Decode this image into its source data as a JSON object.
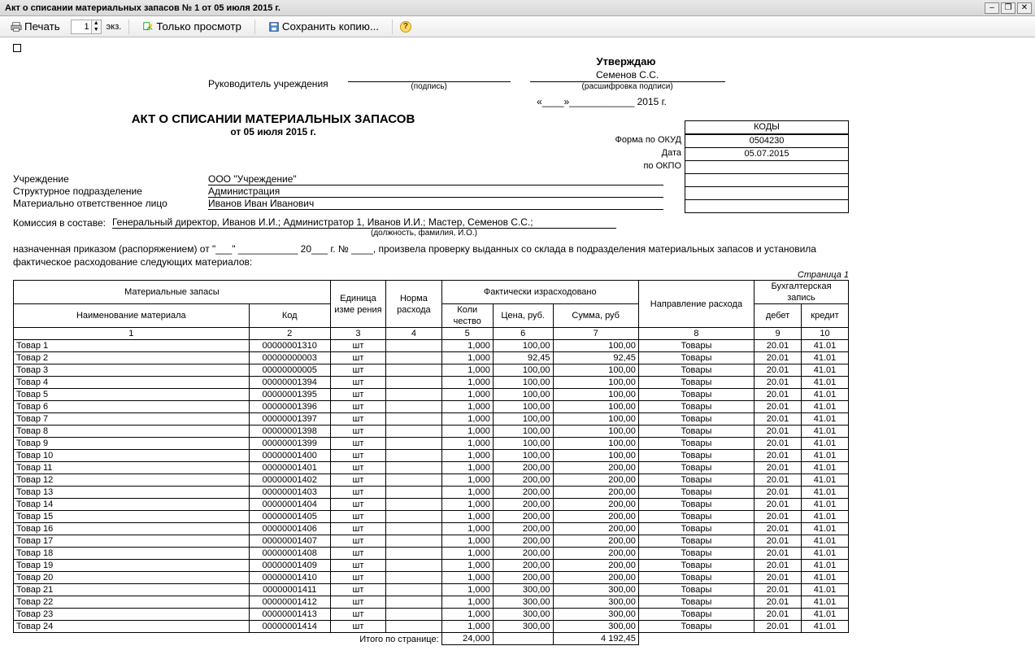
{
  "window": {
    "title": "Акт о списании материальных запасов № 1 от 05 июля 2015 г."
  },
  "toolbar": {
    "print": "Печать",
    "copies": "1",
    "copies_suffix": "экз.",
    "preview_only": "Только просмотр",
    "save_copy": "Сохранить копию..."
  },
  "approval": {
    "title": "Утверждаю",
    "head_label": "Руководитель учреждения",
    "signature_sub": "(подпись)",
    "name": "Семенов С.С.",
    "name_sub": "(расшифровка подписи)",
    "date_template": "«____»____________ 2015 г."
  },
  "document": {
    "title": "АКТ О СПИСАНИИ МАТЕРИАЛЬНЫХ ЗАПАСОВ",
    "date": "от 05 июля 2015  г."
  },
  "codes": {
    "header": "КОДЫ",
    "form_label": "Форма по ОКУД",
    "form_value": "0504230",
    "date_label": "Дата",
    "date_value": "05.07.2015",
    "okpo_label": "по ОКПО",
    "okpo_value": ""
  },
  "fields": {
    "institution_label": "Учреждение",
    "institution_value": "ООО \"Учреждение\"",
    "division_label": "Структурное подразделение",
    "division_value": "Администрация",
    "responsible_label": "Материально ответственное лицо",
    "responsible_value": "Иванов Иван Иванович"
  },
  "commission": {
    "label": "Комиссия в составе:",
    "value": "Генеральный директор, Иванов И.И.; Администратор 1, Иванов И.И.; Мастер, Семенов С.С.;",
    "sub": "(должность, фамилия, И.О.)",
    "order_text": "назначенная приказом (распоряжением) от \"___\" ___________ 20___ г. № ____, произвела проверку выданных со склада в подразделения материальных запасов и установила фактическое расходование следующих материалов:"
  },
  "page_label": "Страница 1",
  "headers": {
    "materials": "Материальные запасы",
    "name": "Наименование материала",
    "code": "Код",
    "unit": "Единица изме рения",
    "norm": "Норма расхода",
    "actual": "Фактически израсходовано",
    "qty": "Коли чество",
    "price": "Цена, руб.",
    "sum": "Сумма, руб",
    "direction": "Направление расхода",
    "accounting": "Бухгалтерская запись",
    "debit": "дебет",
    "credit": "кредит"
  },
  "col_nums": [
    "1",
    "2",
    "3",
    "4",
    "5",
    "6",
    "7",
    "8",
    "9",
    "10"
  ],
  "rows": [
    {
      "name": "Товар 1",
      "code": "00000001310",
      "unit": "шт",
      "qty": "1,000",
      "price": "100,00",
      "sum": "100,00",
      "dir": "Товары",
      "debit": "20.01",
      "credit": "41.01"
    },
    {
      "name": "Товар 2",
      "code": "00000000003",
      "unit": "шт",
      "qty": "1,000",
      "price": "92,45",
      "sum": "92,45",
      "dir": "Товары",
      "debit": "20.01",
      "credit": "41.01"
    },
    {
      "name": "Товар 3",
      "code": "00000000005",
      "unit": "шт",
      "qty": "1,000",
      "price": "100,00",
      "sum": "100,00",
      "dir": "Товары",
      "debit": "20.01",
      "credit": "41.01"
    },
    {
      "name": "Товар 4",
      "code": "00000001394",
      "unit": "шт",
      "qty": "1,000",
      "price": "100,00",
      "sum": "100,00",
      "dir": "Товары",
      "debit": "20.01",
      "credit": "41.01"
    },
    {
      "name": "Товар 5",
      "code": "00000001395",
      "unit": "шт",
      "qty": "1,000",
      "price": "100,00",
      "sum": "100,00",
      "dir": "Товары",
      "debit": "20.01",
      "credit": "41.01"
    },
    {
      "name": "Товар 6",
      "code": "00000001396",
      "unit": "шт",
      "qty": "1,000",
      "price": "100,00",
      "sum": "100,00",
      "dir": "Товары",
      "debit": "20.01",
      "credit": "41.01"
    },
    {
      "name": "Товар 7",
      "code": "00000001397",
      "unit": "шт",
      "qty": "1,000",
      "price": "100,00",
      "sum": "100,00",
      "dir": "Товары",
      "debit": "20.01",
      "credit": "41.01"
    },
    {
      "name": "Товар 8",
      "code": "00000001398",
      "unit": "шт",
      "qty": "1,000",
      "price": "100,00",
      "sum": "100,00",
      "dir": "Товары",
      "debit": "20.01",
      "credit": "41.01"
    },
    {
      "name": "Товар 9",
      "code": "00000001399",
      "unit": "шт",
      "qty": "1,000",
      "price": "100,00",
      "sum": "100,00",
      "dir": "Товары",
      "debit": "20.01",
      "credit": "41.01"
    },
    {
      "name": "Товар 10",
      "code": "00000001400",
      "unit": "шт",
      "qty": "1,000",
      "price": "100,00",
      "sum": "100,00",
      "dir": "Товары",
      "debit": "20.01",
      "credit": "41.01"
    },
    {
      "name": "Товар 11",
      "code": "00000001401",
      "unit": "шт",
      "qty": "1,000",
      "price": "200,00",
      "sum": "200,00",
      "dir": "Товары",
      "debit": "20.01",
      "credit": "41.01"
    },
    {
      "name": "Товар 12",
      "code": "00000001402",
      "unit": "шт",
      "qty": "1,000",
      "price": "200,00",
      "sum": "200,00",
      "dir": "Товары",
      "debit": "20.01",
      "credit": "41.01"
    },
    {
      "name": "Товар 13",
      "code": "00000001403",
      "unit": "шт",
      "qty": "1,000",
      "price": "200,00",
      "sum": "200,00",
      "dir": "Товары",
      "debit": "20.01",
      "credit": "41.01"
    },
    {
      "name": "Товар 14",
      "code": "00000001404",
      "unit": "шт",
      "qty": "1,000",
      "price": "200,00",
      "sum": "200,00",
      "dir": "Товары",
      "debit": "20.01",
      "credit": "41.01"
    },
    {
      "name": "Товар 15",
      "code": "00000001405",
      "unit": "шт",
      "qty": "1,000",
      "price": "200,00",
      "sum": "200,00",
      "dir": "Товары",
      "debit": "20.01",
      "credit": "41.01"
    },
    {
      "name": "Товар 16",
      "code": "00000001406",
      "unit": "шт",
      "qty": "1,000",
      "price": "200,00",
      "sum": "200,00",
      "dir": "Товары",
      "debit": "20.01",
      "credit": "41.01"
    },
    {
      "name": "Товар 17",
      "code": "00000001407",
      "unit": "шт",
      "qty": "1,000",
      "price": "200,00",
      "sum": "200,00",
      "dir": "Товары",
      "debit": "20.01",
      "credit": "41.01"
    },
    {
      "name": "Товар 18",
      "code": "00000001408",
      "unit": "шт",
      "qty": "1,000",
      "price": "200,00",
      "sum": "200,00",
      "dir": "Товары",
      "debit": "20.01",
      "credit": "41.01"
    },
    {
      "name": "Товар 19",
      "code": "00000001409",
      "unit": "шт",
      "qty": "1,000",
      "price": "200,00",
      "sum": "200,00",
      "dir": "Товары",
      "debit": "20.01",
      "credit": "41.01"
    },
    {
      "name": "Товар 20",
      "code": "00000001410",
      "unit": "шт",
      "qty": "1,000",
      "price": "200,00",
      "sum": "200,00",
      "dir": "Товары",
      "debit": "20.01",
      "credit": "41.01"
    },
    {
      "name": "Товар 21",
      "code": "00000001411",
      "unit": "шт",
      "qty": "1,000",
      "price": "300,00",
      "sum": "300,00",
      "dir": "Товары",
      "debit": "20.01",
      "credit": "41.01"
    },
    {
      "name": "Товар 22",
      "code": "00000001412",
      "unit": "шт",
      "qty": "1,000",
      "price": "300,00",
      "sum": "300,00",
      "dir": "Товары",
      "debit": "20.01",
      "credit": "41.01"
    },
    {
      "name": "Товар 23",
      "code": "00000001413",
      "unit": "шт",
      "qty": "1,000",
      "price": "300,00",
      "sum": "300,00",
      "dir": "Товары",
      "debit": "20.01",
      "credit": "41.01"
    },
    {
      "name": "Товар 24",
      "code": "00000001414",
      "unit": "шт",
      "qty": "1,000",
      "price": "300,00",
      "sum": "300,00",
      "dir": "Товары",
      "debit": "20.01",
      "credit": "41.01"
    }
  ],
  "totals": {
    "label": "Итого по странице:",
    "qty": "24,000",
    "sum": "4 192,45"
  }
}
